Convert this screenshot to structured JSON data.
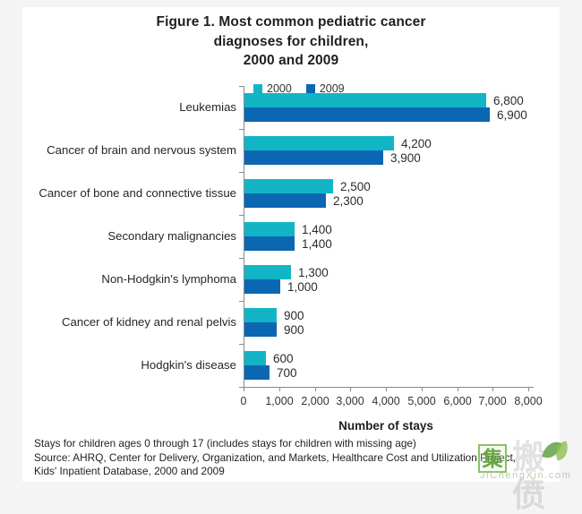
{
  "page": {
    "outer_background": "#f4f4f4",
    "panel_background": "#ffffff"
  },
  "chart_data": {
    "type": "bar",
    "orientation": "horizontal",
    "title": "Figure 1. Most common pediatric cancer diagnoses for children, 2000 and 2009",
    "title_lines": [
      "Figure 1. Most common pediatric cancer",
      "diagnoses for children,",
      "2000 and 2009"
    ],
    "categories": [
      "Leukemias",
      "Cancer of brain and nervous system",
      "Cancer of bone and connective tissue",
      "Secondary malignancies",
      "Non-Hodgkin's lymphoma",
      "Cancer of kidney and renal pelvis",
      "Hodgkin's disease"
    ],
    "series": [
      {
        "name": "2000",
        "color": "#12b5c6",
        "values": [
          6800,
          4200,
          2500,
          1400,
          1300,
          900,
          600
        ],
        "labels": [
          "6,800",
          "4,200",
          "2,500",
          "1,400",
          "1,300",
          "900",
          "600"
        ]
      },
      {
        "name": "2009",
        "color": "#0b67b2",
        "values": [
          6900,
          3900,
          2300,
          1400,
          1000,
          900,
          700
        ],
        "labels": [
          "6,900",
          "3,900",
          "2,300",
          "1,400",
          "1,000",
          "900",
          "700"
        ]
      }
    ],
    "xlabel": "Number of stays",
    "xlim": [
      0,
      8000
    ],
    "xticks": [
      0,
      1000,
      2000,
      3000,
      4000,
      5000,
      6000,
      7000,
      8000
    ],
    "xtick_labels": [
      "0",
      "1,000",
      "2,000",
      "3,000",
      "4,000",
      "5,000",
      "6,000",
      "7,000",
      "8,000"
    ],
    "legend_position": "top-left-of-plot",
    "grid": false,
    "axis_color": "#8a8a8a",
    "value_labels_shown": true
  },
  "footnotes": [
    "Stays for children ages 0 through 17 (includes stays for children with missing age)",
    "Source: AHRQ, Center for Delivery, Organization, and Markets, Healthcare Cost and Utilization Project,",
    "Kids' Inpatient Database, 2000 and 2009"
  ],
  "watermark": {
    "boxed_char": "集",
    "faded_chars": "搬偾",
    "site": "JiChengXin.com",
    "green": "#76b84e"
  }
}
